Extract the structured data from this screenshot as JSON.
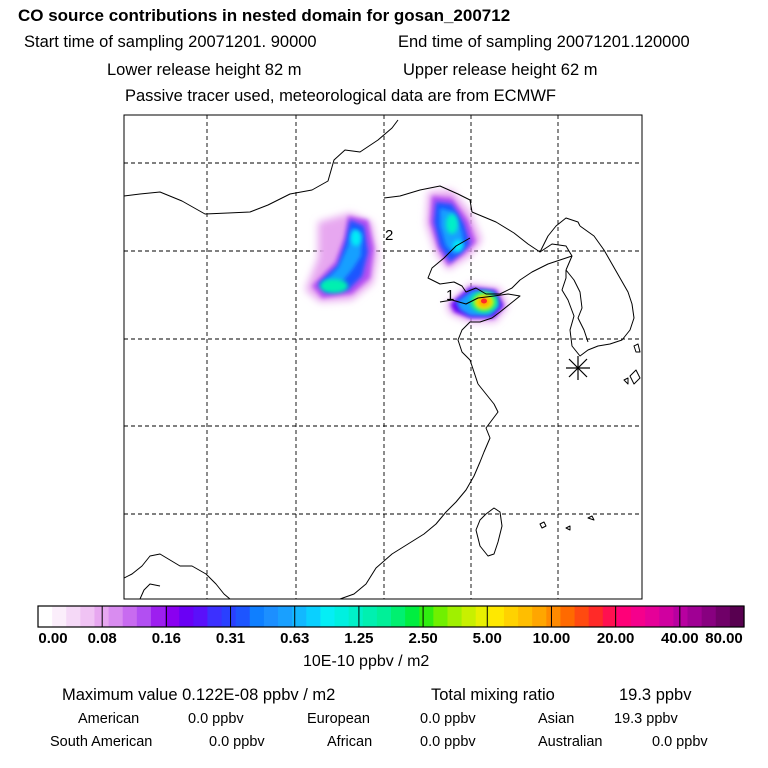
{
  "header": {
    "title": "CO  source contributions in nested domain for gosan_200712",
    "start_time": "Start time of sampling 20071201. 90000",
    "end_time": "End time of sampling 20071201.120000",
    "lower_release": "Lower release height   82 m",
    "upper_release": "Upper release height   62 m",
    "tracer_note": "Passive tracer used, meteorological data are from ECMWF"
  },
  "map": {
    "release_labels": [
      "1",
      "2"
    ],
    "receptor_marker": "asterisk-icon"
  },
  "colorbar": {
    "ticks": [
      "0.00",
      "0.08",
      "0.16",
      "0.31",
      "0.63",
      "1.25",
      "2.50",
      "5.00",
      "10.00",
      "20.00",
      "40.00",
      "80.00"
    ],
    "colors": [
      "#ffffff",
      "#fbeefb",
      "#f5d9f7",
      "#f0c3f4",
      "#e7a7f0",
      "#d98cf0",
      "#c86bf0",
      "#b24ff2",
      "#9d1fef",
      "#8a00f0",
      "#6a00f5",
      "#5a10fa",
      "#3c30ff",
      "#2a40ff",
      "#1d55ff",
      "#0f7fff",
      "#1c8fff",
      "#19a0ff",
      "#12b8ff",
      "#0ad0ff",
      "#05eef5",
      "#00f0e0",
      "#00f0c8",
      "#00f0b0",
      "#00f098",
      "#00f070",
      "#00ee40",
      "#30ee10",
      "#70f000",
      "#a0f000",
      "#c8f000",
      "#e8f000",
      "#ffe800",
      "#ffd200",
      "#ffbe00",
      "#ffa600",
      "#ff8a00",
      "#ff6a00",
      "#ff4a10",
      "#ff2a28",
      "#ff1050",
      "#ff0078",
      "#f5008c",
      "#e60098",
      "#d000a0",
      "#b800a0",
      "#a00094",
      "#880080",
      "#700068",
      "#580050"
    ],
    "unit": "10E-10 ppbv / m2"
  },
  "summary": {
    "max_label": "Maximum value  0.122E-08 ppbv / m2",
    "total_label": "Total mixing ratio",
    "total_value": "19.3 ppbv",
    "regions": [
      {
        "name": "American",
        "value": "0.0 ppbv"
      },
      {
        "name": "European",
        "value": "0.0 ppbv"
      },
      {
        "name": "Asian",
        "value": "19.3 ppbv"
      },
      {
        "name": "South American",
        "value": "0.0 ppbv"
      },
      {
        "name": "African",
        "value": "0.0 ppbv"
      },
      {
        "name": "Australian",
        "value": "0.0 ppbv"
      }
    ]
  }
}
